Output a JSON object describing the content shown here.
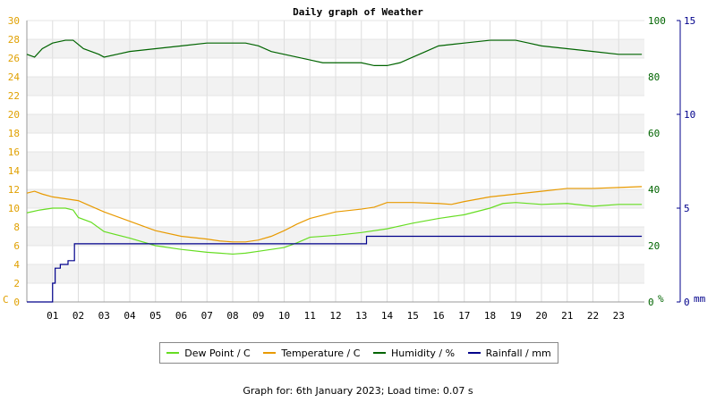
{
  "chart_data": {
    "type": "line",
    "title": "Daily graph of Weather",
    "x_ticks": [
      "01",
      "02",
      "03",
      "04",
      "05",
      "06",
      "07",
      "08",
      "09",
      "10",
      "11",
      "12",
      "13",
      "14",
      "15",
      "16",
      "17",
      "18",
      "19",
      "20",
      "21",
      "22",
      "23"
    ],
    "xlim": [
      0,
      24
    ],
    "axes": {
      "left": {
        "label": "C",
        "range": [
          0,
          30
        ],
        "ticks": [
          0,
          2,
          4,
          6,
          8,
          10,
          12,
          14,
          16,
          18,
          20,
          22,
          24,
          26,
          28,
          30
        ],
        "color": "#e0a000"
      },
      "right1": {
        "label": "%",
        "range": [
          0,
          100
        ],
        "ticks": [
          0,
          20,
          40,
          60,
          80,
          100
        ],
        "color": "#006400"
      },
      "right2": {
        "label": "mm",
        "range": [
          0,
          15
        ],
        "ticks": [
          0,
          5,
          10,
          15
        ],
        "color": "#00008b"
      }
    },
    "grid": true,
    "legend_position": "bottom",
    "series": [
      {
        "name": "Dew Point / C",
        "axis": "left",
        "color": "#66dd22",
        "x": [
          0,
          0.5,
          1,
          1.5,
          1.8,
          2,
          2.5,
          3,
          4,
          5,
          6,
          7,
          7.5,
          8,
          8.5,
          9,
          10,
          10.5,
          11,
          12,
          13,
          14,
          15,
          16,
          17,
          18,
          18.5,
          19,
          20,
          21,
          22,
          23,
          23.9
        ],
        "y": [
          9.5,
          9.8,
          10,
          10,
          9.8,
          9,
          8.5,
          7.5,
          6.8,
          6,
          5.6,
          5.3,
          5.2,
          5.1,
          5.2,
          5.4,
          5.8,
          6.3,
          6.9,
          7.1,
          7.4,
          7.8,
          8.4,
          8.9,
          9.3,
          10,
          10.5,
          10.6,
          10.4,
          10.5,
          10.2,
          10.4,
          10.4
        ]
      },
      {
        "name": "Temperature / C",
        "axis": "left",
        "color": "#e89a00",
        "x": [
          0,
          0.3,
          0.6,
          1,
          1.5,
          2,
          2.5,
          3,
          4,
          5,
          6,
          7,
          7.5,
          8,
          8.5,
          9,
          9.5,
          10,
          10.5,
          11,
          12,
          13,
          13.5,
          14,
          14.5,
          15,
          16,
          16.5,
          17,
          18,
          19,
          20,
          21,
          22,
          23,
          23.9
        ],
        "y": [
          11.6,
          11.8,
          11.5,
          11.2,
          11,
          10.8,
          10.2,
          9.6,
          8.6,
          7.6,
          7,
          6.7,
          6.5,
          6.4,
          6.4,
          6.6,
          7,
          7.6,
          8.3,
          8.9,
          9.6,
          9.9,
          10.1,
          10.6,
          10.6,
          10.6,
          10.5,
          10.4,
          10.7,
          11.2,
          11.5,
          11.8,
          12.1,
          12.1,
          12.2,
          12.3
        ]
      },
      {
        "name": "Humidity / %",
        "axis": "right1",
        "color": "#006400",
        "x": [
          0,
          0.3,
          0.6,
          1,
          1.5,
          1.8,
          2.2,
          2.8,
          3,
          3.5,
          4,
          5,
          6,
          7,
          8,
          8.5,
          9,
          9.5,
          10,
          10.5,
          11,
          11.5,
          12,
          12.5,
          13,
          13.5,
          14,
          14.5,
          15,
          15.5,
          16,
          17,
          18,
          19,
          19.5,
          20,
          21,
          22,
          23,
          23.9
        ],
        "y": [
          88,
          87,
          90,
          92,
          93,
          93,
          90,
          88,
          87,
          88,
          89,
          90,
          91,
          92,
          92,
          92,
          91,
          89,
          88,
          87,
          86,
          85,
          85,
          85,
          85,
          84,
          84,
          85,
          87,
          89,
          91,
          92,
          93,
          93,
          92,
          91,
          90,
          89,
          88,
          88
        ]
      },
      {
        "name": "Rainfall / mm",
        "axis": "right2",
        "color": "#00008b",
        "x": [
          0,
          0.9,
          1,
          1.1,
          1.3,
          1.6,
          1.85,
          5,
          10,
          13.1,
          13.2,
          23.9
        ],
        "y": [
          0,
          0,
          1,
          1.8,
          2,
          2.2,
          3.1,
          3.1,
          3.1,
          3.1,
          3.5,
          3.5
        ]
      }
    ]
  },
  "footer": "Graph for: 6th January 2023; Load time: 0.07 s"
}
